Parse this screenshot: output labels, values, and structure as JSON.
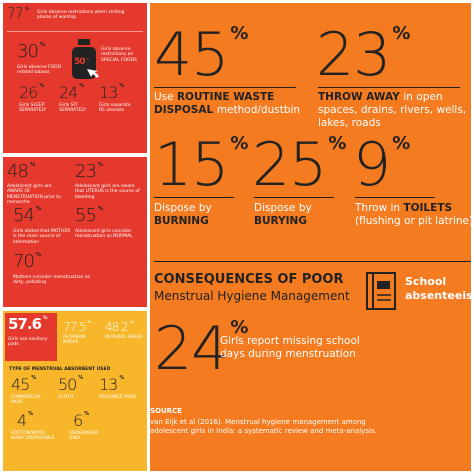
{
  "unit": "%",
  "left_top": {
    "stats": [
      {
        "number": "77",
        "label": "Girls observe restrictions when visiting places of worship"
      },
      {
        "number": "30",
        "label": "Girls observe FOOD related taboos"
      },
      {
        "number": "50",
        "label": "Girls observe restrictions on SPECIAL FOODS"
      },
      {
        "number": "26",
        "label": "Girls SLEEP SEPARATELY"
      },
      {
        "number": "24",
        "label": "Girls SIT SEPARATELY"
      },
      {
        "number": "13",
        "label": "Girls separate RE utensils"
      }
    ]
  },
  "left_middle": {
    "stats": [
      {
        "number": "48",
        "label": "Adolescent girls are AWARE OF MENSTRUATION prior to menarche"
      },
      {
        "number": "23",
        "label": "Adolescent girls are aware that UTERUS is the source of bleeding"
      },
      {
        "number": "54",
        "label": "Girls stated that MOTHER is the main source of information"
      },
      {
        "number": "55",
        "label": "Adolescent girls consider menstruation as NORMAL"
      },
      {
        "number": "70",
        "label": "Mothers consider menstruation as dirty, polluting"
      }
    ]
  },
  "left_bottom": {
    "stats": [
      {
        "number": "57.6",
        "label": "Girls use sanitary pads"
      },
      {
        "number": "77.5",
        "label": "IN URBAN AREAS"
      },
      {
        "number": "48.2",
        "label": "IN RURAL AREAS"
      }
    ],
    "heading": "TYPE OF MENSTRUAL ABSORBENT USED",
    "absorbents": [
      {
        "number": "45",
        "label": "COMMERCIAL PADS"
      },
      {
        "number": "50",
        "label": "CLOTH"
      },
      {
        "number": "13",
        "label": "REUSABLE PADS"
      },
      {
        "number": "4",
        "label": "COTTON/WOOL WASH DISPOSABLE"
      },
      {
        "number": "6",
        "label": "UNDERWEAR ONLY"
      }
    ]
  },
  "disposal": [
    {
      "number": "45",
      "pre": "Use",
      "bold": "ROUTINE WASTE DISPOSAL",
      "post": "method/dustbin"
    },
    {
      "number": "23",
      "bold": "THROW AWAY",
      "post": "in open spaces, drains, rivers, wells, lakes, roads"
    },
    {
      "number": "15",
      "pre": "Dispose by",
      "bold": "BURNING"
    },
    {
      "number": "25",
      "pre": "Dispose by",
      "bold": "BURYING"
    },
    {
      "number": "9",
      "pre": "Throw in",
      "bold": "TOILETS",
      "post": "(flushing or pit latrine)"
    }
  ],
  "consequences": {
    "heading": "CONSEQUENCES OF POOR",
    "subheading": "Menstrual Hygiene Management",
    "label": "School absenteeism",
    "number": "24",
    "caption": "Girls report missing school days during menstruation"
  },
  "source": {
    "label": "SOURCE",
    "text": "van Eijk et al (2016). Menstrual hygiene management among adolescent girls in India: a systematic review and meta-analysis."
  }
}
